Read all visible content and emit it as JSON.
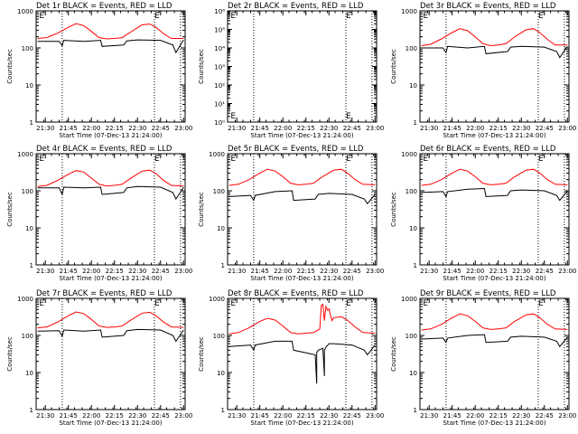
{
  "figure": {
    "xtick_labels": [
      "21:30",
      "21:45",
      "22:00",
      "22:15",
      "22:30",
      "22:45",
      "23:00"
    ],
    "xlabel": "Start Time (07-Dec-13 21:24:00)",
    "ylabel": "Counts/sec",
    "series_colors": {
      "events": "#000000",
      "lld": "#ff0000"
    }
  },
  "chart_data": [
    {
      "type": "line",
      "title": "Det 1r BLACK = Events, RED = LLD",
      "scale": "log",
      "ylim": [
        1,
        1000
      ],
      "ytick_labels": [
        "1",
        "10",
        "100",
        "1000"
      ],
      "yticks": [
        1,
        10,
        100,
        1000
      ],
      "xlim": [
        "21:24",
        "23:01"
      ],
      "vlines": [
        "21:41",
        "22:41",
        "22:58"
      ],
      "flags": [
        {
          "x": "21:26",
          "label": "E"
        },
        {
          "x": "22:41",
          "label": "E"
        }
      ],
      "series": [
        {
          "color": "#000000",
          "x": [
            "21:25",
            "21:39",
            "21:41",
            "21:42",
            "21:55",
            "22:06",
            "22:07",
            "22:21",
            "22:23",
            "22:30",
            "22:45",
            "22:53",
            "22:55",
            "23:00"
          ],
          "y": [
            150,
            150,
            115,
            160,
            150,
            160,
            110,
            120,
            155,
            165,
            160,
            120,
            75,
            165
          ]
        },
        {
          "color": "#ff0000",
          "x": [
            "21:25",
            "21:31",
            "21:38",
            "21:45",
            "21:50",
            "21:55",
            "22:00",
            "22:05",
            "22:10",
            "22:15",
            "22:20",
            "22:25",
            "22:33",
            "22:38",
            "22:42",
            "22:47",
            "22:52",
            "23:00"
          ],
          "y": [
            180,
            190,
            250,
            360,
            450,
            400,
            280,
            190,
            175,
            180,
            190,
            260,
            420,
            440,
            360,
            240,
            180,
            180
          ]
        }
      ]
    },
    {
      "type": "line",
      "title": "Det 2r BLACK = Events, RED = LLD",
      "scale": "log",
      "ylim": [
        1,
        1000000
      ],
      "ytick_labels": [
        "10⁰",
        "10¹",
        "10²",
        "10³",
        "10⁴",
        "10⁵",
        "10⁶"
      ],
      "yticks": [
        1,
        10,
        100,
        1000,
        10000,
        100000,
        1000000
      ],
      "xlim": [
        "21:24",
        "23:01"
      ],
      "vlines": [
        "21:41",
        "22:41",
        "22:58"
      ],
      "flags": [
        {
          "x": "21:26",
          "label": "E"
        },
        {
          "x": "22:41",
          "label": "E"
        }
      ],
      "series": []
    },
    {
      "type": "line",
      "title": "Det 3r BLACK = Events, RED = LLD",
      "scale": "log",
      "ylim": [
        1,
        1000
      ],
      "ytick_labels": [
        "1",
        "10",
        "100",
        "1000"
      ],
      "yticks": [
        1,
        10,
        100,
        1000
      ],
      "xlim": [
        "21:24",
        "23:01"
      ],
      "vlines": [
        "21:41",
        "22:41",
        "22:58"
      ],
      "flags": [
        {
          "x": "21:26",
          "label": "E"
        },
        {
          "x": "22:41",
          "label": "E"
        }
      ],
      "series": [
        {
          "color": "#000000",
          "x": [
            "21:25",
            "21:39",
            "21:41",
            "21:42",
            "21:55",
            "22:06",
            "22:07",
            "22:21",
            "22:23",
            "22:30",
            "22:45",
            "22:53",
            "22:55",
            "23:00"
          ],
          "y": [
            100,
            100,
            75,
            110,
            100,
            110,
            70,
            80,
            105,
            110,
            105,
            80,
            55,
            110
          ]
        },
        {
          "color": "#ff0000",
          "x": [
            "21:25",
            "21:31",
            "21:38",
            "21:45",
            "21:50",
            "21:55",
            "22:00",
            "22:05",
            "22:10",
            "22:15",
            "22:20",
            "22:25",
            "22:33",
            "22:38",
            "22:42",
            "22:47",
            "22:52",
            "23:00"
          ],
          "y": [
            115,
            125,
            175,
            260,
            330,
            290,
            200,
            130,
            115,
            120,
            130,
            190,
            310,
            330,
            260,
            170,
            120,
            120
          ]
        }
      ]
    },
    {
      "type": "line",
      "title": "Det 4r BLACK = Events, RED = LLD",
      "scale": "log",
      "ylim": [
        1,
        1000
      ],
      "ytick_labels": [
        "1",
        "10",
        "100",
        "1000"
      ],
      "yticks": [
        1,
        10,
        100,
        1000
      ],
      "xlim": [
        "21:24",
        "23:01"
      ],
      "vlines": [
        "21:41",
        "22:41",
        "22:58"
      ],
      "flags": [
        {
          "x": "21:26",
          "label": "E"
        },
        {
          "x": "22:41",
          "label": "E"
        }
      ],
      "series": [
        {
          "color": "#000000",
          "x": [
            "21:25",
            "21:39",
            "21:41",
            "21:42",
            "21:55",
            "22:06",
            "22:07",
            "22:21",
            "22:23",
            "22:30",
            "22:45",
            "22:53",
            "22:55",
            "23:00"
          ],
          "y": [
            120,
            120,
            80,
            125,
            120,
            125,
            80,
            90,
            120,
            130,
            125,
            90,
            60,
            125
          ]
        },
        {
          "color": "#ff0000",
          "x": [
            "21:25",
            "21:31",
            "21:38",
            "21:45",
            "21:50",
            "21:55",
            "22:00",
            "22:05",
            "22:10",
            "22:15",
            "22:20",
            "22:25",
            "22:33",
            "22:38",
            "22:42",
            "22:47",
            "22:52",
            "23:00"
          ],
          "y": [
            130,
            140,
            190,
            280,
            350,
            320,
            220,
            150,
            135,
            140,
            150,
            210,
            340,
            360,
            290,
            190,
            140,
            135
          ]
        }
      ]
    },
    {
      "type": "line",
      "title": "Det 5r BLACK = Events, RED = LLD",
      "scale": "log",
      "ylim": [
        1,
        1000
      ],
      "ytick_labels": [
        "1",
        "10",
        "100",
        "1000"
      ],
      "yticks": [
        1,
        10,
        100,
        1000
      ],
      "xlim": [
        "21:24",
        "23:01"
      ],
      "vlines": [
        "21:41",
        "22:41",
        "22:58"
      ],
      "flags": [
        {
          "x": "21:26",
          "label": "E"
        },
        {
          "x": "22:41",
          "label": "E"
        }
      ],
      "series": [
        {
          "color": "#000000",
          "x": [
            "21:25",
            "21:39",
            "21:41",
            "21:42",
            "21:55",
            "22:06",
            "22:07",
            "22:21",
            "22:23",
            "22:30",
            "22:45",
            "22:53",
            "22:55",
            "23:00"
          ],
          "y": [
            70,
            75,
            55,
            75,
            95,
            100,
            55,
            60,
            80,
            85,
            80,
            60,
            45,
            80
          ]
        },
        {
          "color": "#ff0000",
          "x": [
            "21:25",
            "21:31",
            "21:38",
            "21:45",
            "21:50",
            "21:55",
            "22:00",
            "22:05",
            "22:10",
            "22:15",
            "22:20",
            "22:25",
            "22:33",
            "22:38",
            "22:42",
            "22:47",
            "22:52",
            "23:00"
          ],
          "y": [
            140,
            150,
            200,
            300,
            380,
            340,
            240,
            160,
            145,
            150,
            160,
            230,
            360,
            380,
            300,
            200,
            150,
            145
          ]
        }
      ]
    },
    {
      "type": "line",
      "title": "Det 6r BLACK = Events, RED = LLD",
      "scale": "log",
      "ylim": [
        1,
        1000
      ],
      "ytick_labels": [
        "1",
        "10",
        "100",
        "1000"
      ],
      "yticks": [
        1,
        10,
        100,
        1000
      ],
      "xlim": [
        "21:24",
        "23:01"
      ],
      "vlines": [
        "21:41",
        "22:41",
        "22:58"
      ],
      "flags": [
        {
          "x": "21:26",
          "label": "E"
        },
        {
          "x": "22:41",
          "label": "E"
        }
      ],
      "series": [
        {
          "color": "#000000",
          "x": [
            "21:25",
            "21:39",
            "21:41",
            "21:42",
            "21:55",
            "22:06",
            "22:07",
            "22:21",
            "22:23",
            "22:30",
            "22:45",
            "22:53",
            "22:55",
            "23:00"
          ],
          "y": [
            90,
            95,
            70,
            95,
            110,
            115,
            70,
            75,
            100,
            105,
            100,
            75,
            55,
            100
          ]
        },
        {
          "color": "#ff0000",
          "x": [
            "21:25",
            "21:31",
            "21:38",
            "21:45",
            "21:50",
            "21:55",
            "22:00",
            "22:05",
            "22:10",
            "22:15",
            "22:20",
            "22:25",
            "22:33",
            "22:38",
            "22:42",
            "22:47",
            "22:52",
            "23:00"
          ],
          "y": [
            140,
            150,
            200,
            300,
            380,
            340,
            240,
            160,
            145,
            150,
            160,
            230,
            360,
            380,
            300,
            200,
            150,
            145
          ]
        }
      ]
    },
    {
      "type": "line",
      "title": "Det 7r BLACK = Events, RED = LLD",
      "scale": "log",
      "ylim": [
        1,
        1000
      ],
      "ytick_labels": [
        "1",
        "10",
        "100",
        "1000"
      ],
      "yticks": [
        1,
        10,
        100,
        1000
      ],
      "xlim": [
        "21:24",
        "23:01"
      ],
      "vlines": [
        "21:41",
        "22:41",
        "22:58"
      ],
      "flags": [
        {
          "x": "21:26",
          "label": "E"
        },
        {
          "x": "22:41",
          "label": "E"
        }
      ],
      "series": [
        {
          "color": "#000000",
          "x": [
            "21:25",
            "21:39",
            "21:41",
            "21:42",
            "21:55",
            "22:06",
            "22:07",
            "22:21",
            "22:23",
            "22:30",
            "22:45",
            "22:53",
            "22:55",
            "23:00"
          ],
          "y": [
            130,
            135,
            95,
            140,
            130,
            140,
            90,
            100,
            135,
            145,
            140,
            100,
            70,
            140
          ]
        },
        {
          "color": "#ff0000",
          "x": [
            "21:25",
            "21:31",
            "21:38",
            "21:45",
            "21:50",
            "21:55",
            "22:00",
            "22:05",
            "22:10",
            "22:15",
            "22:20",
            "22:25",
            "22:33",
            "22:38",
            "22:42",
            "22:47",
            "22:52",
            "23:00"
          ],
          "y": [
            160,
            170,
            230,
            340,
            430,
            390,
            270,
            180,
            165,
            170,
            180,
            250,
            400,
            420,
            340,
            230,
            170,
            165
          ]
        }
      ]
    },
    {
      "type": "line",
      "title": "Det 8r BLACK = Events, RED = LLD",
      "scale": "log",
      "ylim": [
        1,
        1000
      ],
      "ytick_labels": [
        "1",
        "10",
        "100",
        "1000"
      ],
      "yticks": [
        1,
        10,
        100,
        1000
      ],
      "xlim": [
        "21:24",
        "23:01"
      ],
      "vlines": [
        "21:41",
        "22:41",
        "22:58"
      ],
      "flags": [
        {
          "x": "21:26",
          "label": "E"
        },
        {
          "x": "22:41",
          "label": "E"
        }
      ],
      "series": [
        {
          "color": "#000000",
          "x": [
            "21:25",
            "21:39",
            "21:41",
            "21:42",
            "21:55",
            "22:06",
            "22:07",
            "22:21",
            "22:22",
            "22:22",
            "22:23",
            "22:26",
            "22:27",
            "22:27",
            "22:28",
            "22:30",
            "22:33",
            "22:45",
            "22:53",
            "22:55",
            "23:00"
          ],
          "y": [
            50,
            55,
            40,
            55,
            70,
            70,
            40,
            30,
            5,
            35,
            40,
            45,
            8,
            40,
            48,
            60,
            60,
            55,
            40,
            30,
            55
          ]
        },
        {
          "color": "#ff0000",
          "x": [
            "21:25",
            "21:31",
            "21:38",
            "21:45",
            "21:50",
            "21:55",
            "22:00",
            "22:05",
            "22:10",
            "22:15",
            "22:20",
            "22:24",
            "22:25",
            "22:26",
            "22:27",
            "22:28",
            "22:29",
            "22:30",
            "22:31",
            "22:32",
            "22:33",
            "22:38",
            "22:42",
            "22:47",
            "22:52",
            "23:00"
          ],
          "y": [
            110,
            120,
            160,
            240,
            290,
            260,
            180,
            120,
            110,
            115,
            120,
            150,
            650,
            700,
            250,
            600,
            480,
            520,
            350,
            250,
            300,
            320,
            260,
            170,
            120,
            115
          ]
        }
      ]
    },
    {
      "type": "line",
      "title": "Det 9r BLACK = Events, RED = LLD",
      "scale": "log",
      "ylim": [
        1,
        1000
      ],
      "ytick_labels": [
        "1",
        "10",
        "100",
        "1000"
      ],
      "yticks": [
        1,
        10,
        100,
        1000
      ],
      "xlim": [
        "21:24",
        "23:01"
      ],
      "vlines": [
        "21:41",
        "22:41",
        "22:58"
      ],
      "flags": [
        {
          "x": "21:26",
          "label": "E"
        },
        {
          "x": "22:41",
          "label": "E"
        }
      ],
      "series": [
        {
          "color": "#000000",
          "x": [
            "21:25",
            "21:39",
            "21:41",
            "21:42",
            "21:55",
            "22:06",
            "22:07",
            "22:21",
            "22:23",
            "22:30",
            "22:45",
            "22:53",
            "22:55",
            "23:00"
          ],
          "y": [
            80,
            85,
            65,
            85,
            100,
            105,
            65,
            70,
            90,
            95,
            90,
            70,
            50,
            90
          ]
        },
        {
          "color": "#ff0000",
          "x": [
            "21:25",
            "21:31",
            "21:38",
            "21:45",
            "21:50",
            "21:55",
            "22:00",
            "22:05",
            "22:10",
            "22:15",
            "22:20",
            "22:25",
            "22:33",
            "22:38",
            "22:42",
            "22:47",
            "22:52",
            "23:00"
          ],
          "y": [
            140,
            150,
            200,
            300,
            380,
            340,
            240,
            160,
            145,
            150,
            160,
            230,
            360,
            380,
            300,
            200,
            150,
            145
          ]
        }
      ]
    }
  ]
}
